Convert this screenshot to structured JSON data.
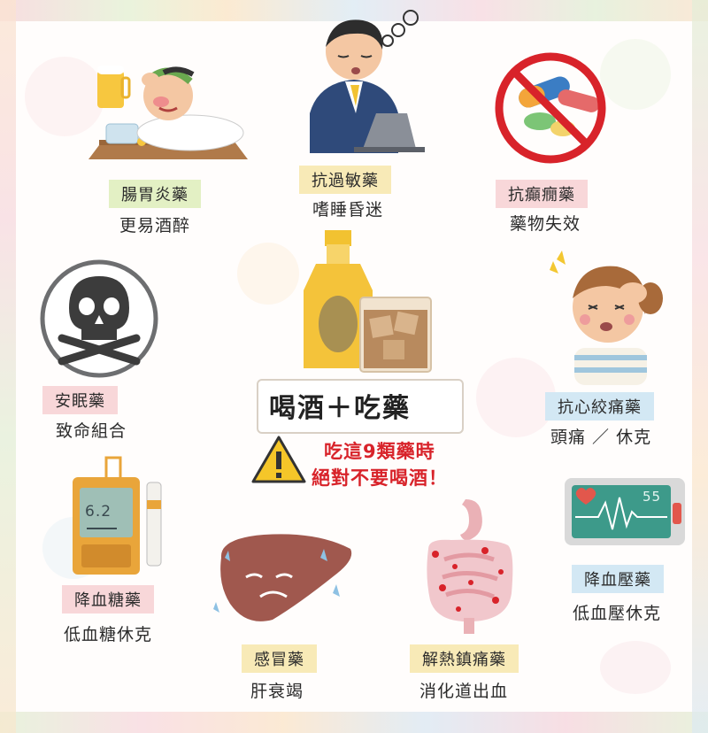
{
  "title": "喝酒＋吃藥",
  "warning": {
    "line1": "吃這9類藥時",
    "line2": "絕對不要喝酒！"
  },
  "items": [
    {
      "drug": "腸胃炎藥",
      "effect": "更易酒醉",
      "icon": "drunk-man-icon"
    },
    {
      "drug": "抗過敏藥",
      "effect": "嗜睡昏迷",
      "icon": "sleepy-worker-icon"
    },
    {
      "drug": "抗癲癇藥",
      "effect": "藥物失效",
      "icon": "no-pills-icon"
    },
    {
      "drug": "安眠藥",
      "effect": "致命組合",
      "icon": "skull-crossbones-icon"
    },
    {
      "drug": "抗心絞痛藥",
      "effect": "頭痛 ／ 休克",
      "icon": "headache-girl-icon"
    },
    {
      "drug": "降血糖藥",
      "effect": "低血糖休克",
      "icon": "glucose-meter-icon"
    },
    {
      "drug": "感冒藥",
      "effect": "肝衰竭",
      "icon": "sad-liver-icon"
    },
    {
      "drug": "解熱鎮痛藥",
      "effect": "消化道出血",
      "icon": "intestine-bleeding-icon"
    },
    {
      "drug": "降血壓藥",
      "effect": "低血壓休克",
      "icon": "heart-monitor-icon"
    }
  ],
  "glucose_reading": "6.2",
  "monitor_reading": "55",
  "colors": {
    "warning_red": "#d8232a",
    "label_green": "#e3f0c4",
    "label_pink": "#f8d7d9",
    "label_yellow": "#f8eab7",
    "label_blue": "#d3e8f4"
  }
}
